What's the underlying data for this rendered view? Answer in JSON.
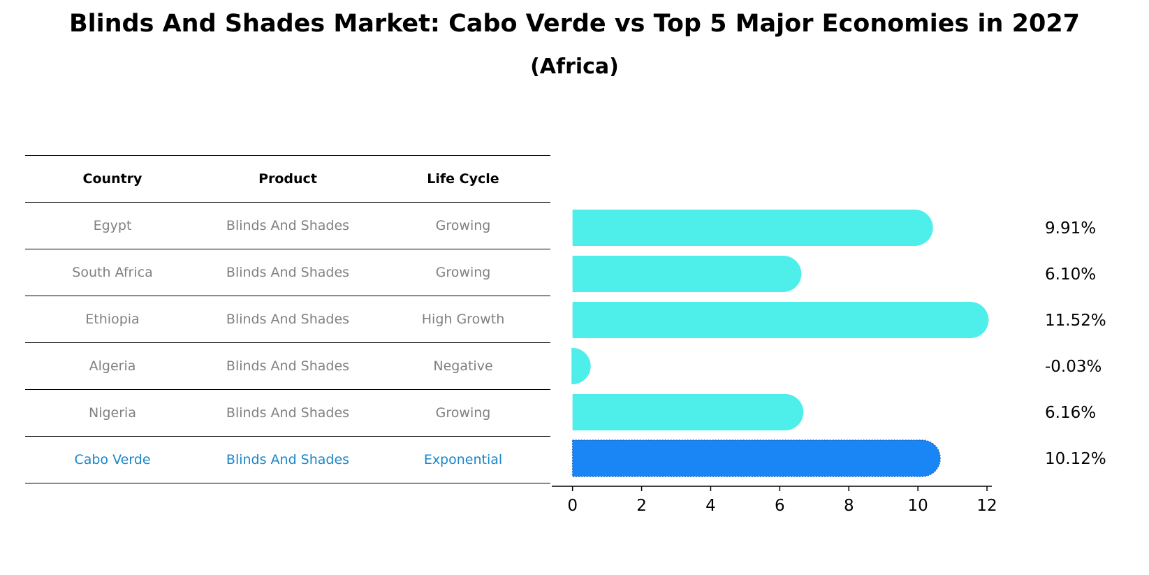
{
  "title": "Blinds And Shades Market: Cabo Verde vs Top 5 Major Economies in 2027",
  "subtitle": "(Africa)",
  "table": {
    "headers": [
      "Country",
      "Product",
      "Life Cycle"
    ],
    "rows": [
      {
        "country": "Egypt",
        "product": "Blinds And Shades",
        "life_cycle": "Growing"
      },
      {
        "country": "South Africa",
        "product": "Blinds And Shades",
        "life_cycle": "Growing"
      },
      {
        "country": "Ethiopia",
        "product": "Blinds And Shades",
        "life_cycle": "High Growth"
      },
      {
        "country": "Algeria",
        "product": "Blinds And Shades",
        "life_cycle": "Negative"
      },
      {
        "country": "Nigeria",
        "product": "Blinds And Shades",
        "life_cycle": "Growing"
      },
      {
        "country": "Cabo Verde",
        "product": "Blinds And Shades",
        "life_cycle": "Exponential"
      }
    ]
  },
  "colors": {
    "bar": "#4eeeea",
    "highlight_bar": "#1a86f5",
    "highlight_text": "#1a86c9",
    "muted_text": "#808080"
  },
  "chart_data": {
    "type": "bar",
    "orientation": "horizontal",
    "categories": [
      "Egypt",
      "South Africa",
      "Ethiopia",
      "Algeria",
      "Nigeria",
      "Cabo Verde"
    ],
    "values": [
      9.91,
      6.1,
      11.52,
      -0.03,
      6.16,
      10.12
    ],
    "value_labels": [
      "9.91%",
      "6.10%",
      "11.52%",
      "-0.03%",
      "6.16%",
      "10.12%"
    ],
    "highlight_index": 5,
    "xlim": [
      -0.6,
      12.1
    ],
    "xticks": [
      0,
      2,
      4,
      6,
      8,
      10,
      12
    ],
    "grid": false
  }
}
